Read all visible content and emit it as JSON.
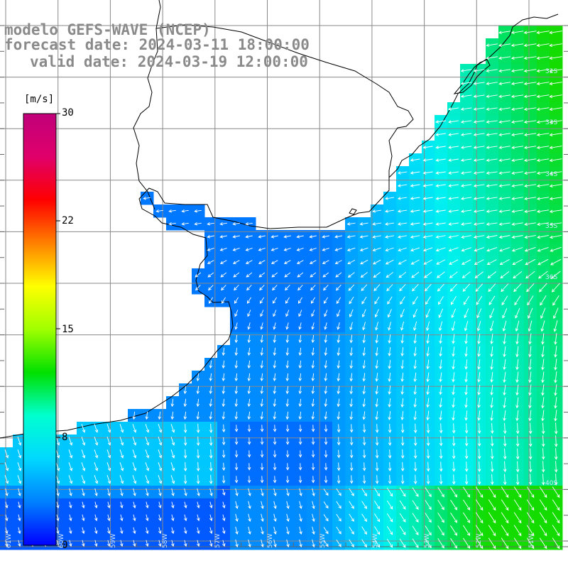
{
  "title": {
    "line1": "modelo GEFS-WAVE (NCEP)",
    "line2": "forecast date: 2024-03-11 18:00:00",
    "line3": "valid date: 2024-03-19 12:00:00"
  },
  "colorbar": {
    "unit": "[m/s]",
    "ticks": [
      "30",
      "22",
      "15",
      "8",
      "0"
    ],
    "range": [
      0,
      30
    ],
    "colors": [
      "#0000ff",
      "#0080ff",
      "#00d8ff",
      "#00ffd0",
      "#00e000",
      "#a0ff00",
      "#ffff00",
      "#ff8000",
      "#ff0000",
      "#e0006a",
      "#c0007a"
    ]
  },
  "map": {
    "land_color": "#ffffff",
    "coast_color": "#000000",
    "grid_color": "#888888",
    "arrow_color": "#ffffff",
    "lat_labels": [
      "32S",
      "33S",
      "34S",
      "35S",
      "36S",
      "40S"
    ],
    "lon_labels": [
      "61W",
      "60W",
      "59W",
      "58W",
      "57W",
      "56W",
      "55W",
      "54W",
      "53W",
      "52W",
      "51W"
    ]
  }
}
